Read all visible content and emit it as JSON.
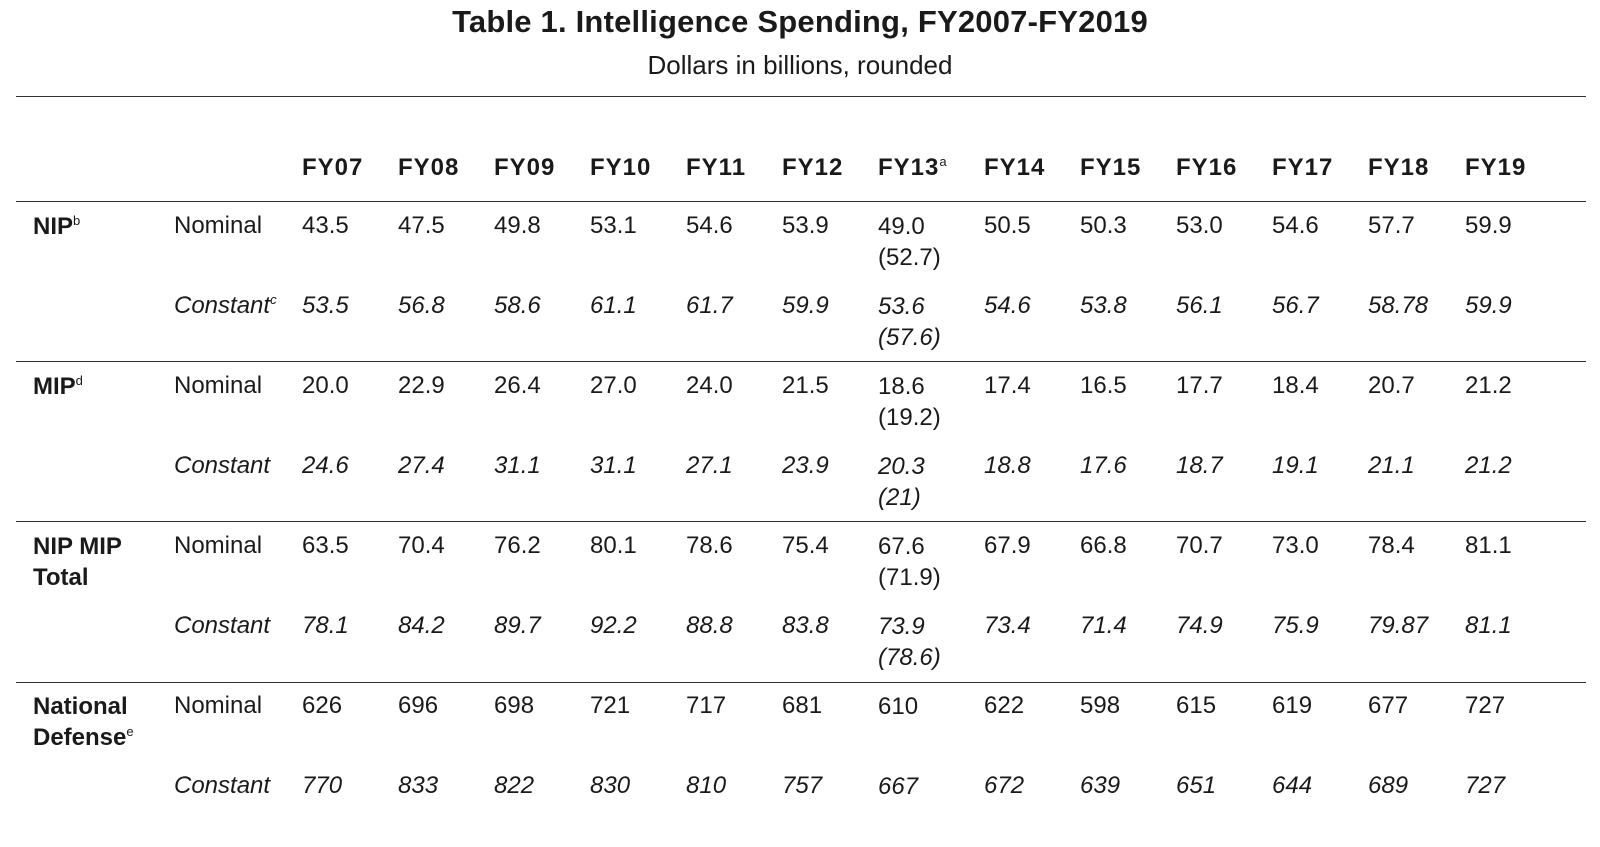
{
  "title": "Table 1. Intelligence Spending, FY2007-FY2019",
  "subtitle": "Dollars in billions, rounded",
  "columns": [
    {
      "label": "FY07",
      "sup": ""
    },
    {
      "label": "FY08",
      "sup": ""
    },
    {
      "label": "FY09",
      "sup": ""
    },
    {
      "label": "FY10",
      "sup": ""
    },
    {
      "label": "FY11",
      "sup": ""
    },
    {
      "label": "FY12",
      "sup": ""
    },
    {
      "label": "FY13",
      "sup": "a"
    },
    {
      "label": "FY14",
      "sup": ""
    },
    {
      "label": "FY15",
      "sup": ""
    },
    {
      "label": "FY16",
      "sup": ""
    },
    {
      "label": "FY17",
      "sup": ""
    },
    {
      "label": "FY18",
      "sup": ""
    },
    {
      "label": "FY19",
      "sup": ""
    }
  ],
  "groups": [
    {
      "name_lines": [
        "NIP"
      ],
      "sup": "b",
      "rows": [
        {
          "label": "Nominal",
          "label_sup": "",
          "italic": false,
          "values": [
            "43.5",
            "47.5",
            "49.8",
            "53.1",
            "54.6",
            "53.9",
            "49.0",
            "50.5",
            "50.3",
            "53.0",
            "54.6",
            "57.7",
            "59.9"
          ],
          "fy13_alt": "(52.7)"
        },
        {
          "label": "Constant",
          "label_sup": "c",
          "italic": true,
          "values": [
            "53.5",
            "56.8",
            "58.6",
            "61.1",
            "61.7",
            "59.9",
            "53.6",
            "54.6",
            "53.8",
            "56.1",
            "56.7",
            "58.78",
            "59.9"
          ],
          "fy13_alt": "(57.6)"
        }
      ]
    },
    {
      "name_lines": [
        "MIP"
      ],
      "sup": "d",
      "rows": [
        {
          "label": "Nominal",
          "label_sup": "",
          "italic": false,
          "values": [
            "20.0",
            "22.9",
            "26.4",
            "27.0",
            "24.0",
            "21.5",
            "18.6",
            "17.4",
            "16.5",
            "17.7",
            "18.4",
            "20.7",
            "21.2"
          ],
          "fy13_alt": "(19.2)"
        },
        {
          "label": "Constant",
          "label_sup": "",
          "italic": true,
          "values": [
            "24.6",
            "27.4",
            "31.1",
            "31.1",
            "27.1",
            "23.9",
            "20.3",
            "18.8",
            "17.6",
            "18.7",
            "19.1",
            "21.1",
            "21.2"
          ],
          "fy13_alt": "(21)"
        }
      ]
    },
    {
      "name_lines": [
        "NIP MIP",
        "Total"
      ],
      "sup": "",
      "rows": [
        {
          "label": "Nominal",
          "label_sup": "",
          "italic": false,
          "values": [
            "63.5",
            "70.4",
            "76.2",
            "80.1",
            "78.6",
            "75.4",
            "67.6",
            "67.9",
            "66.8",
            "70.7",
            "73.0",
            "78.4",
            "81.1"
          ],
          "fy13_alt": "(71.9)"
        },
        {
          "label": "Constant",
          "label_sup": "",
          "italic": true,
          "values": [
            "78.1",
            "84.2",
            "89.7",
            "92.2",
            "88.8",
            "83.8",
            "73.9",
            "73.4",
            "71.4",
            "74.9",
            "75.9",
            "79.87",
            "81.1"
          ],
          "fy13_alt": "(78.6)"
        }
      ]
    },
    {
      "name_lines": [
        "National",
        "Defense"
      ],
      "sup": "e",
      "rows": [
        {
          "label": "Nominal",
          "label_sup": "",
          "italic": false,
          "values": [
            "626",
            "696",
            "698",
            "721",
            "717",
            "681",
            "610",
            "622",
            "598",
            "615",
            "619",
            "677",
            "727"
          ],
          "fy13_alt": ""
        },
        {
          "label": "Constant",
          "label_sup": "",
          "italic": true,
          "values": [
            "770",
            "833",
            "822",
            "830",
            "810",
            "757",
            "667",
            "672",
            "639",
            "651",
            "644",
            "689",
            "727"
          ],
          "fy13_alt": ""
        }
      ]
    }
  ]
}
